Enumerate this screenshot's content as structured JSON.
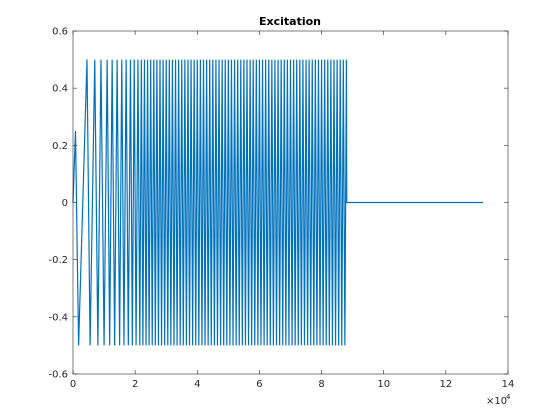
{
  "chart_data": {
    "type": "line",
    "title": "Excitation",
    "xlim": [
      0,
      140000
    ],
    "xticks": [
      0,
      {
        "value": 20000,
        "label": "2"
      },
      {
        "value": 40000,
        "label": "4"
      },
      {
        "value": 60000,
        "label": "6"
      },
      {
        "value": 80000,
        "label": "8"
      },
      {
        "value": 100000,
        "label": "10"
      },
      {
        "value": 120000,
        "label": "12"
      },
      {
        "value": 140000,
        "label": "14"
      }
    ],
    "x_multiplier": "×10",
    "x_multiplier_exponent": "4",
    "ylim": [
      -0.6,
      0.6
    ],
    "yticks": [
      -0.6,
      -0.4,
      -0.2,
      0,
      0.2,
      0.4,
      0.6
    ],
    "series": [
      {
        "color": "#0072bd",
        "x": [
          0,
          800,
          1800,
          4500,
          5500,
          7000,
          8000,
          9000,
          10000,
          11000,
          11800,
          12600,
          13400,
          14200,
          15000,
          15700,
          16400,
          17100,
          17800,
          18500,
          19100,
          19700,
          20300,
          20900,
          21500,
          22000,
          22500,
          23000,
          23500,
          24000,
          24500,
          25000,
          25500,
          26000,
          26500,
          27000,
          27500,
          28000,
          28500,
          29000,
          29500,
          30000,
          30500,
          31000,
          31500,
          32000,
          32500,
          33000,
          33500,
          34000,
          34500,
          35000,
          35500,
          36000,
          36500,
          37000,
          37500,
          38000,
          38500,
          39000,
          39500,
          40000,
          40500,
          41000,
          41500,
          42000,
          42500,
          43000,
          43500,
          44000,
          44500,
          45000,
          45500,
          46000,
          46500,
          47000,
          47500,
          48000,
          48500,
          49000,
          49500,
          50000,
          50500,
          51000,
          51500,
          52000,
          52500,
          53000,
          53500,
          54000,
          54500,
          55000,
          55500,
          56000,
          56500,
          57000,
          57500,
          58000,
          58500,
          59000,
          59500,
          60000,
          60500,
          61000,
          61500,
          62000,
          62500,
          63000,
          63500,
          64000,
          64500,
          65000,
          65500,
          66000,
          66500,
          67000,
          67500,
          68000,
          68500,
          69000,
          69500,
          70000,
          70500,
          71000,
          71500,
          72000,
          72500,
          73000,
          73500,
          74000,
          74500,
          75000,
          75500,
          76000,
          76500,
          77000,
          77500,
          78000,
          78500,
          79000,
          79500,
          80000,
          80500,
          81000,
          81500,
          82000,
          82500,
          83000,
          83500,
          84000,
          84500,
          85000,
          85500,
          86000,
          86500,
          87000,
          87500,
          88000,
          88100,
          132000
        ],
        "values": [
          0,
          0.25,
          -0.5,
          0.5,
          -0.5,
          0.5,
          -0.5,
          0.5,
          -0.5,
          0.5,
          -0.5,
          0.5,
          -0.5,
          0.5,
          -0.5,
          0.5,
          -0.5,
          0.5,
          -0.5,
          0.5,
          -0.5,
          0.5,
          -0.5,
          0.5,
          -0.5,
          0.5,
          -0.5,
          0.5,
          -0.5,
          0.5,
          -0.5,
          0.5,
          -0.5,
          0.5,
          -0.5,
          0.5,
          -0.5,
          0.5,
          -0.5,
          0.5,
          -0.5,
          0.5,
          -0.5,
          0.5,
          -0.5,
          0.5,
          -0.5,
          0.5,
          -0.5,
          0.5,
          -0.5,
          0.5,
          -0.5,
          0.5,
          -0.5,
          0.5,
          -0.5,
          0.5,
          -0.5,
          0.5,
          -0.5,
          0.5,
          -0.5,
          0.5,
          -0.5,
          0.5,
          -0.5,
          0.5,
          -0.5,
          0.5,
          -0.5,
          0.5,
          -0.5,
          0.5,
          -0.5,
          0.5,
          -0.5,
          0.5,
          -0.5,
          0.5,
          -0.5,
          0.5,
          -0.5,
          0.5,
          -0.5,
          0.5,
          -0.5,
          0.5,
          -0.5,
          0.5,
          -0.5,
          0.5,
          -0.5,
          0.5,
          -0.5,
          0.5,
          -0.5,
          0.5,
          -0.5,
          0.5,
          -0.5,
          0.5,
          -0.5,
          0.5,
          -0.5,
          0.5,
          -0.5,
          0.5,
          -0.5,
          0.5,
          -0.5,
          0.5,
          -0.5,
          0.5,
          -0.5,
          0.5,
          -0.5,
          0.5,
          -0.5,
          0.5,
          -0.5,
          0.5,
          -0.5,
          0.5,
          -0.5,
          0.5,
          -0.5,
          0.5,
          -0.5,
          0.5,
          -0.5,
          0.5,
          -0.5,
          0.5,
          -0.5,
          0.5,
          -0.5,
          0.5,
          -0.5,
          0.5,
          -0.5,
          0.5,
          -0.5,
          0.5,
          -0.5,
          0.5,
          -0.5,
          0.5,
          -0.5,
          0.5,
          -0.5,
          0.5,
          -0.5,
          0.5,
          -0.5,
          0.5,
          -0.5,
          0.5,
          0,
          0
        ]
      }
    ]
  }
}
